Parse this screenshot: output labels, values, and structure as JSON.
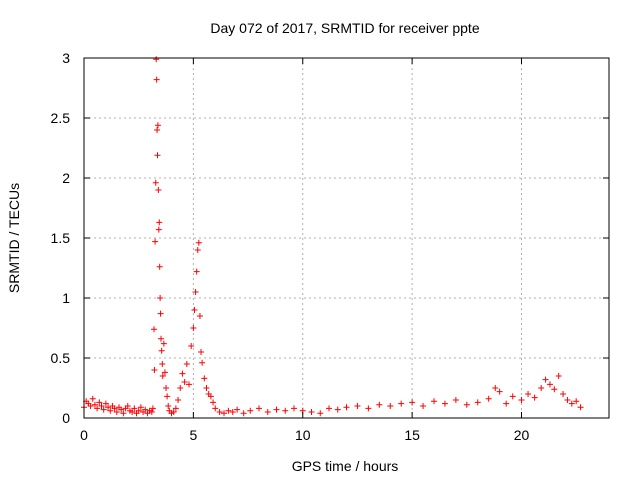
{
  "chart_data": {
    "type": "scatter",
    "title": "Day 072 of 2017, SRMTID for receiver ppte",
    "xlabel": "GPS time / hours",
    "ylabel": "SRMTID / TECUs",
    "xlim": [
      0,
      24
    ],
    "ylim": [
      0,
      3
    ],
    "xticks": [
      0,
      5,
      10,
      15,
      20
    ],
    "xtick_labels": [
      "0",
      "5",
      "10",
      "15",
      "20"
    ],
    "yticks": [
      0,
      0.5,
      1,
      1.5,
      2,
      2.5,
      3
    ],
    "ytick_labels": [
      "0",
      "0.5",
      "1",
      "1.5",
      "2",
      "2.5",
      "3"
    ],
    "grid": true,
    "marker": "+",
    "series": [
      {
        "name": "SRMTID",
        "color": "#ff0000",
        "x": [
          0.0,
          0.1,
          0.2,
          0.3,
          0.4,
          0.5,
          0.6,
          0.7,
          0.8,
          0.9,
          1.0,
          1.1,
          1.2,
          1.3,
          1.4,
          1.5,
          1.6,
          1.7,
          1.8,
          1.9,
          2.0,
          2.1,
          2.2,
          2.3,
          2.4,
          2.5,
          2.6,
          2.7,
          2.8,
          2.9,
          3.0,
          3.1,
          3.15,
          3.2,
          3.22,
          3.25,
          3.28,
          3.3,
          3.32,
          3.34,
          3.36,
          3.38,
          3.4,
          3.42,
          3.44,
          3.46,
          3.48,
          3.5,
          3.52,
          3.55,
          3.58,
          3.6,
          3.65,
          3.7,
          3.75,
          3.8,
          3.85,
          3.9,
          4.0,
          4.1,
          4.2,
          4.3,
          4.4,
          4.5,
          4.6,
          4.7,
          4.8,
          4.9,
          5.0,
          5.05,
          5.1,
          5.15,
          5.2,
          5.25,
          5.3,
          5.35,
          5.4,
          5.5,
          5.6,
          5.7,
          5.8,
          5.9,
          6.0,
          6.2,
          6.4,
          6.6,
          6.8,
          7.0,
          7.3,
          7.6,
          8.0,
          8.4,
          8.8,
          9.2,
          9.6,
          10.0,
          10.4,
          10.8,
          11.2,
          11.6,
          12.0,
          12.5,
          13.0,
          13.5,
          14.0,
          14.5,
          15.0,
          15.5,
          16.0,
          16.5,
          17.0,
          17.5,
          18.0,
          18.5,
          18.8,
          19.0,
          19.3,
          19.6,
          20.0,
          20.3,
          20.6,
          20.9,
          21.1,
          21.3,
          21.5,
          21.7,
          21.9,
          22.1,
          22.3,
          22.5,
          22.7
        ],
        "y": [
          0.09,
          0.14,
          0.12,
          0.1,
          0.16,
          0.11,
          0.08,
          0.13,
          0.1,
          0.07,
          0.12,
          0.09,
          0.06,
          0.1,
          0.08,
          0.05,
          0.09,
          0.07,
          0.04,
          0.08,
          0.1,
          0.06,
          0.05,
          0.08,
          0.04,
          0.06,
          0.09,
          0.05,
          0.07,
          0.04,
          0.06,
          0.05,
          0.08,
          0.74,
          0.4,
          1.47,
          1.96,
          2.99,
          2.82,
          2.4,
          2.19,
          2.44,
          1.9,
          1.57,
          1.63,
          1.26,
          1.0,
          0.87,
          0.66,
          0.56,
          0.45,
          0.35,
          0.62,
          0.38,
          0.25,
          0.18,
          0.1,
          0.06,
          0.04,
          0.05,
          0.08,
          0.15,
          0.25,
          0.37,
          0.3,
          0.45,
          0.28,
          0.6,
          0.75,
          0.9,
          1.05,
          1.22,
          1.4,
          1.46,
          0.85,
          0.55,
          0.46,
          0.33,
          0.25,
          0.2,
          0.18,
          0.13,
          0.08,
          0.05,
          0.04,
          0.06,
          0.05,
          0.07,
          0.04,
          0.06,
          0.08,
          0.05,
          0.07,
          0.06,
          0.08,
          0.06,
          0.05,
          0.04,
          0.08,
          0.07,
          0.09,
          0.1,
          0.08,
          0.11,
          0.1,
          0.12,
          0.13,
          0.1,
          0.14,
          0.12,
          0.15,
          0.11,
          0.13,
          0.16,
          0.25,
          0.22,
          0.12,
          0.18,
          0.15,
          0.2,
          0.17,
          0.25,
          0.32,
          0.28,
          0.24,
          0.35,
          0.2,
          0.15,
          0.12,
          0.14,
          0.09
        ]
      }
    ]
  }
}
